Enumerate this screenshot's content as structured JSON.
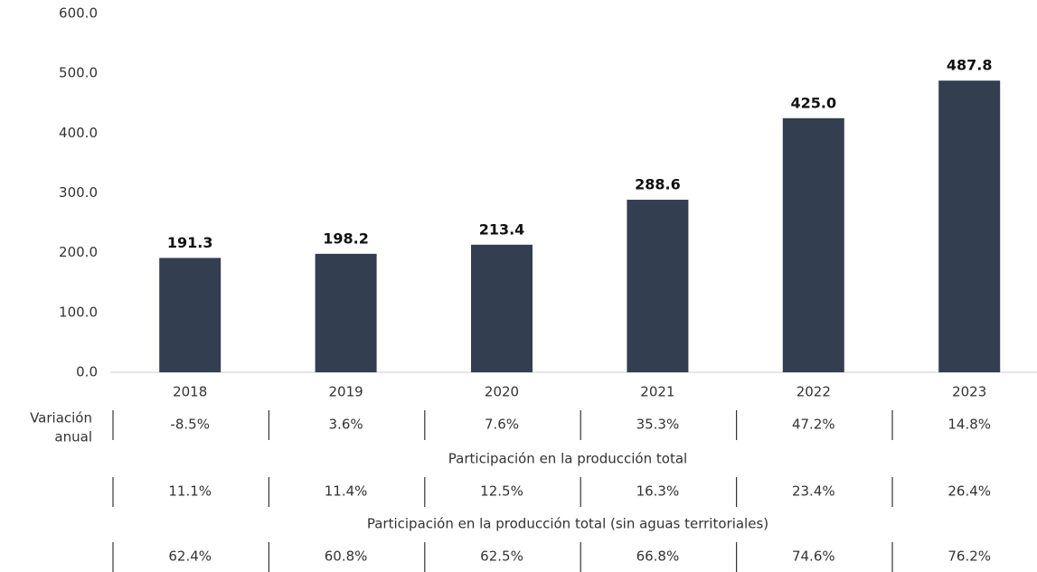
{
  "chart_data": {
    "type": "bar",
    "categories": [
      "2018",
      "2019",
      "2020",
      "2021",
      "2022",
      "2023"
    ],
    "values": [
      191.3,
      198.2,
      213.4,
      288.6,
      425.0,
      487.8
    ],
    "value_labels": [
      "191.3",
      "198.2",
      "213.4",
      "288.6",
      "425.0",
      "487.8"
    ],
    "color": "#333f50",
    "ylim": [
      0,
      600
    ],
    "yticks": [
      {
        "value": 0,
        "label": "0.0"
      },
      {
        "value": 100,
        "label": "100.0"
      },
      {
        "value": 200,
        "label": "200.0"
      },
      {
        "value": 300,
        "label": "300.0"
      },
      {
        "value": 400,
        "label": "400.0"
      },
      {
        "value": 500,
        "label": "500.0"
      },
      {
        "value": 600,
        "label": "600.0"
      }
    ],
    "grid": false
  },
  "table": {
    "rows": [
      {
        "label_lines": [
          "Variación",
          "anual"
        ],
        "cells": [
          "-8.5%",
          "3.6%",
          "7.6%",
          "35.3%",
          "47.2%",
          "14.8%"
        ]
      },
      {
        "title": "Participación en la producción total",
        "cells": [
          "11.1%",
          "11.4%",
          "12.5%",
          "16.3%",
          "23.4%",
          "26.4%"
        ]
      },
      {
        "title": "Participación en la producción total (sin aguas territoriales)",
        "cells": [
          "62.4%",
          "60.8%",
          "62.5%",
          "66.8%",
          "74.6%",
          "76.2%"
        ]
      }
    ]
  }
}
